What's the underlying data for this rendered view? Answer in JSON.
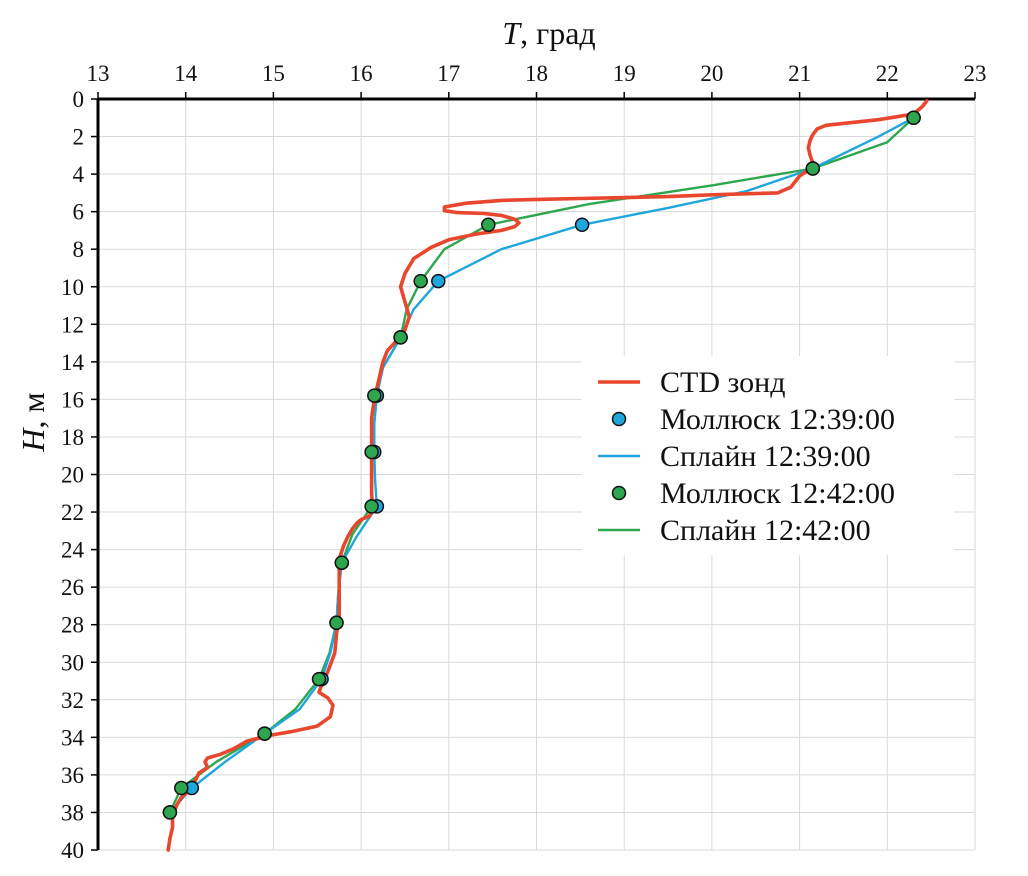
{
  "chart_data": {
    "type": "line",
    "x_axis": {
      "label_var": "T",
      "label_unit": ", град",
      "min": 13,
      "max": 23,
      "step": 1,
      "position": "top"
    },
    "y_axis": {
      "label_var": "H",
      "label_unit": ", м",
      "min": 0,
      "max": 40,
      "step": 2,
      "inverted": true
    },
    "grid": true,
    "legend_position": "right-middle",
    "series": [
      {
        "name": "CTD зонд",
        "kind": "line",
        "color": "#e8472d",
        "points": [
          [
            22.45,
            0.1
          ],
          [
            22.4,
            0.4
          ],
          [
            22.3,
            0.8
          ],
          [
            21.9,
            1.1
          ],
          [
            21.5,
            1.3
          ],
          [
            21.3,
            1.4
          ],
          [
            21.2,
            1.6
          ],
          [
            21.15,
            1.9
          ],
          [
            21.12,
            2.2
          ],
          [
            21.1,
            2.6
          ],
          [
            21.12,
            3.0
          ],
          [
            21.15,
            3.4
          ],
          [
            21.1,
            3.8
          ],
          [
            21.0,
            4.1
          ],
          [
            20.95,
            4.4
          ],
          [
            20.9,
            4.7
          ],
          [
            20.75,
            5.0
          ],
          [
            20.0,
            5.1
          ],
          [
            19.5,
            5.2
          ],
          [
            19.0,
            5.25
          ],
          [
            18.5,
            5.3
          ],
          [
            18.0,
            5.35
          ],
          [
            17.6,
            5.4
          ],
          [
            17.2,
            5.55
          ],
          [
            16.95,
            5.75
          ],
          [
            16.95,
            5.95
          ],
          [
            17.1,
            6.05
          ],
          [
            17.4,
            6.1
          ],
          [
            17.6,
            6.2
          ],
          [
            17.75,
            6.4
          ],
          [
            17.8,
            6.6
          ],
          [
            17.75,
            6.8
          ],
          [
            17.6,
            7.0
          ],
          [
            17.3,
            7.2
          ],
          [
            17.0,
            7.5
          ],
          [
            16.8,
            7.9
          ],
          [
            16.6,
            8.5
          ],
          [
            16.5,
            9.3
          ],
          [
            16.45,
            10.0
          ],
          [
            16.5,
            10.8
          ],
          [
            16.55,
            11.6
          ],
          [
            16.5,
            12.3
          ],
          [
            16.4,
            12.9
          ],
          [
            16.3,
            13.4
          ],
          [
            16.25,
            14.0
          ],
          [
            16.2,
            15.0
          ],
          [
            16.15,
            16.0
          ],
          [
            16.12,
            17.0
          ],
          [
            16.12,
            18.0
          ],
          [
            16.12,
            19.0
          ],
          [
            16.12,
            20.0
          ],
          [
            16.12,
            21.0
          ],
          [
            16.13,
            21.7
          ],
          [
            16.1,
            22.2
          ],
          [
            16.0,
            22.4
          ],
          [
            15.95,
            22.6
          ],
          [
            15.9,
            22.9
          ],
          [
            15.85,
            23.3
          ],
          [
            15.8,
            23.8
          ],
          [
            15.75,
            24.5
          ],
          [
            15.75,
            25.5
          ],
          [
            15.75,
            26.5
          ],
          [
            15.75,
            27.5
          ],
          [
            15.72,
            28.5
          ],
          [
            15.7,
            29.5
          ],
          [
            15.62,
            30.5
          ],
          [
            15.55,
            31.2
          ],
          [
            15.52,
            31.6
          ],
          [
            15.62,
            31.9
          ],
          [
            15.68,
            32.3
          ],
          [
            15.65,
            32.9
          ],
          [
            15.5,
            33.4
          ],
          [
            15.2,
            33.7
          ],
          [
            14.95,
            33.9
          ],
          [
            14.7,
            34.2
          ],
          [
            14.55,
            34.6
          ],
          [
            14.4,
            34.9
          ],
          [
            14.25,
            35.1
          ],
          [
            14.22,
            35.3
          ],
          [
            14.25,
            35.6
          ],
          [
            14.15,
            35.9
          ],
          [
            14.1,
            36.4
          ],
          [
            14.05,
            36.8
          ],
          [
            13.95,
            37.2
          ],
          [
            13.9,
            37.6
          ],
          [
            13.85,
            38.2
          ],
          [
            13.85,
            38.8
          ],
          [
            13.82,
            39.4
          ],
          [
            13.8,
            40.0
          ]
        ]
      },
      {
        "name": "Моллюск 12:39:00",
        "kind": "markers",
        "color": "#1fa6dc",
        "points": [
          [
            22.3,
            1.0
          ],
          [
            21.15,
            3.7
          ],
          [
            18.52,
            6.7
          ],
          [
            16.88,
            9.7
          ],
          [
            16.45,
            12.7
          ],
          [
            16.18,
            15.8
          ],
          [
            16.15,
            18.8
          ],
          [
            16.18,
            21.7
          ],
          [
            15.78,
            24.7
          ],
          [
            15.72,
            27.9
          ],
          [
            15.55,
            30.9
          ],
          [
            14.9,
            33.8
          ],
          [
            14.07,
            36.7
          ],
          [
            13.82,
            38.0
          ]
        ]
      },
      {
        "name": "Сплайн 12:39:00",
        "kind": "line",
        "color": "#1fa6dc",
        "points": [
          [
            22.3,
            1.0
          ],
          [
            21.9,
            2.0
          ],
          [
            21.15,
            3.7
          ],
          [
            20.4,
            4.9
          ],
          [
            19.5,
            5.8
          ],
          [
            18.52,
            6.7
          ],
          [
            17.6,
            8.0
          ],
          [
            16.88,
            9.7
          ],
          [
            16.6,
            11.2
          ],
          [
            16.45,
            12.7
          ],
          [
            16.25,
            14.3
          ],
          [
            16.18,
            15.8
          ],
          [
            16.15,
            17.3
          ],
          [
            16.15,
            18.8
          ],
          [
            16.16,
            20.3
          ],
          [
            16.18,
            21.7
          ],
          [
            15.95,
            23.3
          ],
          [
            15.78,
            24.7
          ],
          [
            15.74,
            26.3
          ],
          [
            15.72,
            27.9
          ],
          [
            15.65,
            29.5
          ],
          [
            15.55,
            30.9
          ],
          [
            15.3,
            32.5
          ],
          [
            14.9,
            33.8
          ],
          [
            14.45,
            35.3
          ],
          [
            14.07,
            36.7
          ],
          [
            13.82,
            38.0
          ]
        ]
      },
      {
        "name": "Моллюск 12:42:00",
        "kind": "markers",
        "color": "#2ea64f",
        "points": [
          [
            22.3,
            1.0
          ],
          [
            21.15,
            3.7
          ],
          [
            17.45,
            6.7
          ],
          [
            16.68,
            9.7
          ],
          [
            16.45,
            12.7
          ],
          [
            16.15,
            15.8
          ],
          [
            16.12,
            18.8
          ],
          [
            16.12,
            21.7
          ],
          [
            15.78,
            24.7
          ],
          [
            15.72,
            27.9
          ],
          [
            15.52,
            30.9
          ],
          [
            14.9,
            33.8
          ],
          [
            13.95,
            36.7
          ],
          [
            13.82,
            38.0
          ]
        ]
      },
      {
        "name": "Сплайн 12:42:00",
        "kind": "line",
        "color": "#2ea64f",
        "points": [
          [
            22.3,
            1.0
          ],
          [
            22.0,
            2.3
          ],
          [
            21.15,
            3.7
          ],
          [
            20.0,
            4.6
          ],
          [
            18.6,
            5.6
          ],
          [
            17.45,
            6.7
          ],
          [
            16.95,
            8.0
          ],
          [
            16.68,
            9.7
          ],
          [
            16.52,
            11.2
          ],
          [
            16.45,
            12.7
          ],
          [
            16.25,
            14.3
          ],
          [
            16.15,
            15.8
          ],
          [
            16.12,
            17.3
          ],
          [
            16.12,
            18.8
          ],
          [
            16.12,
            20.3
          ],
          [
            16.12,
            21.7
          ],
          [
            15.9,
            23.2
          ],
          [
            15.78,
            24.7
          ],
          [
            15.74,
            26.3
          ],
          [
            15.72,
            27.9
          ],
          [
            15.64,
            29.5
          ],
          [
            15.52,
            30.9
          ],
          [
            15.25,
            32.5
          ],
          [
            14.9,
            33.8
          ],
          [
            14.35,
            35.3
          ],
          [
            13.95,
            36.7
          ],
          [
            13.82,
            38.0
          ]
        ]
      }
    ]
  }
}
